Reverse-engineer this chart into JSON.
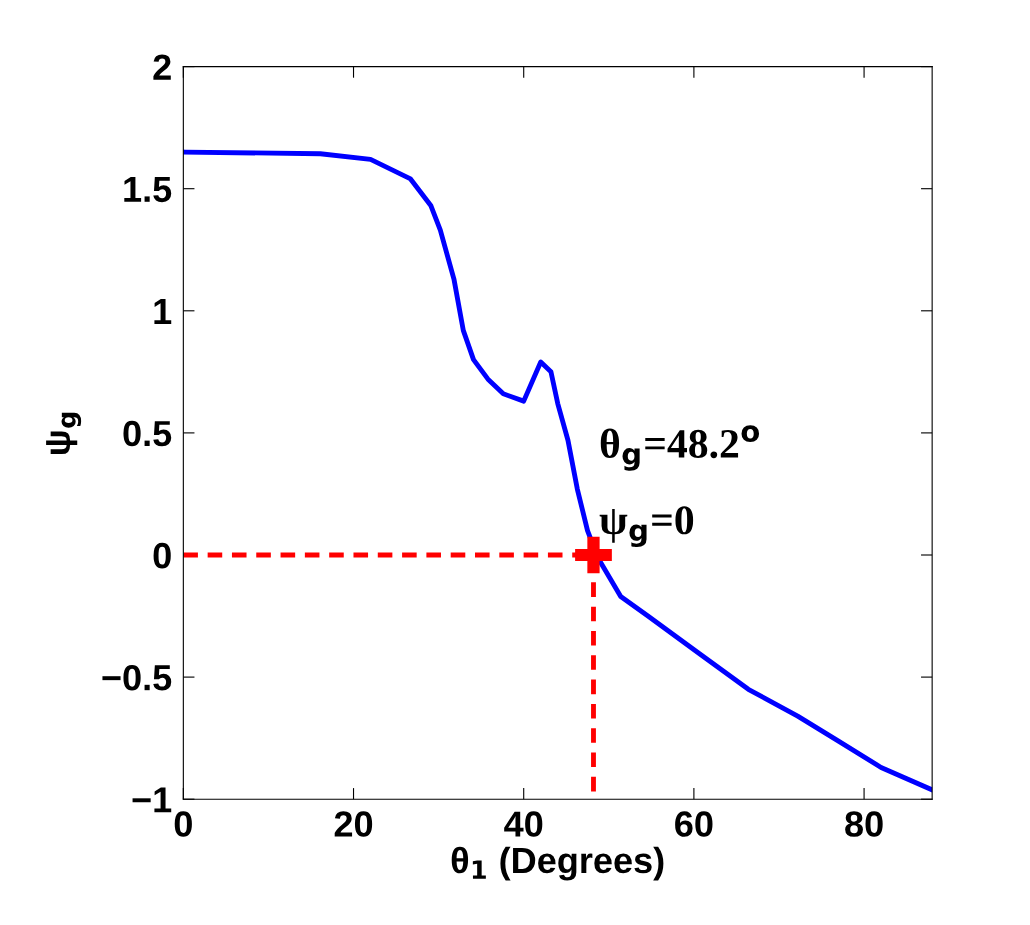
{
  "chart_data": {
    "type": "line",
    "xlabel": "θ$_{1}$ (Degrees)",
    "ylabel": "ψ$_{g}$",
    "xlim": [
      0,
      88
    ],
    "ylim": [
      -1,
      2
    ],
    "xticks": [
      0,
      20,
      40,
      60,
      80
    ],
    "yticks": [
      {
        "value": -1,
        "label": "−1"
      },
      {
        "value": -0.5,
        "label": "−0.5"
      },
      0,
      0.5,
      1,
      1.5,
      2
    ],
    "grid": false,
    "legend": false,
    "series": [
      {
        "color": "#0000ff",
        "line_style": "solid",
        "marker": "none",
        "x": [
          0.2,
          16.1,
          22,
          26.7,
          29.1,
          30.2,
          31.8,
          32.9,
          34.1,
          35.8,
          37.6,
          40,
          42,
          43.2,
          44,
          45.2,
          46.3,
          47.5,
          48.7,
          51.4,
          54.6,
          60.5,
          66.4,
          72.2,
          76.9,
          82,
          87.9
        ],
        "values": [
          1.65,
          1.643,
          1.62,
          1.54,
          1.43,
          1.33,
          1.13,
          0.92,
          0.8,
          0.72,
          0.66,
          0.63,
          0.79,
          0.75,
          0.62,
          0.47,
          0.27,
          0.1,
          -0.01,
          -0.17,
          -0.25,
          -0.4,
          -0.55,
          -0.66,
          -0.76,
          -0.87,
          -0.96
        ]
      },
      {
        "color": "#ff0000",
        "line_style": "dashed",
        "marker": "none",
        "x": [
          0,
          48.2,
          48.2
        ],
        "values": [
          0,
          0,
          -1
        ]
      },
      {
        "type": "scatter",
        "color": "#ff0000",
        "marker": "cross",
        "x": [
          48.2
        ],
        "values": [
          0
        ]
      }
    ],
    "annotations": [
      {
        "text": "θ$_{g}$=48.2$^{o}$",
        "x": 48.2,
        "y": 0
      },
      {
        "text": "ψ$_{g}$=0",
        "x": 48.2,
        "y": 0
      }
    ]
  }
}
